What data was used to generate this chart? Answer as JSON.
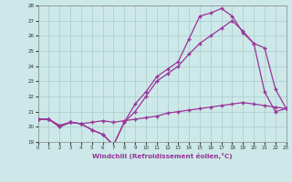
{
  "xlabel": "Windchill (Refroidissement éolien,°C)",
  "bg_color": "#cce8e8",
  "line_color": "#993399",
  "grid_color": "#aacccc",
  "xlim": [
    0,
    23
  ],
  "ylim": [
    19,
    28
  ],
  "xticks": [
    0,
    1,
    2,
    3,
    4,
    5,
    6,
    7,
    8,
    9,
    10,
    11,
    12,
    13,
    14,
    15,
    16,
    17,
    18,
    19,
    20,
    21,
    22,
    23
  ],
  "yticks": [
    19,
    20,
    21,
    22,
    23,
    24,
    25,
    26,
    27,
    28
  ],
  "line1_x": [
    0,
    1,
    2,
    3,
    4,
    5,
    6,
    7,
    8,
    9,
    10,
    11,
    12,
    13,
    14,
    15,
    16,
    17,
    18,
    19,
    20,
    21,
    22,
    23
  ],
  "line1_y": [
    20.5,
    20.5,
    20.0,
    20.3,
    20.2,
    19.8,
    19.5,
    18.8,
    20.3,
    21.5,
    22.3,
    23.3,
    23.8,
    24.3,
    25.8,
    27.3,
    27.5,
    27.8,
    27.3,
    26.2,
    25.5,
    22.3,
    21.0,
    21.2
  ],
  "line2_x": [
    0,
    1,
    2,
    3,
    4,
    5,
    6,
    7,
    8,
    9,
    10,
    11,
    12,
    13,
    14,
    15,
    16,
    17,
    18,
    19,
    20,
    21,
    22,
    23
  ],
  "line2_y": [
    20.5,
    20.5,
    20.0,
    20.3,
    20.2,
    19.8,
    19.5,
    18.8,
    20.3,
    21.0,
    22.0,
    23.0,
    23.5,
    24.0,
    24.8,
    25.5,
    26.0,
    26.5,
    27.0,
    26.3,
    25.5,
    25.2,
    22.5,
    21.2
  ],
  "line3_x": [
    0,
    1,
    2,
    3,
    4,
    5,
    6,
    7,
    8,
    9,
    10,
    11,
    12,
    13,
    14,
    15,
    16,
    17,
    18,
    19,
    20,
    21,
    22,
    23
  ],
  "line3_y": [
    20.5,
    20.5,
    20.1,
    20.3,
    20.2,
    20.3,
    20.4,
    20.3,
    20.4,
    20.5,
    20.6,
    20.7,
    20.9,
    21.0,
    21.1,
    21.2,
    21.3,
    21.4,
    21.5,
    21.6,
    21.5,
    21.4,
    21.3,
    21.2
  ]
}
